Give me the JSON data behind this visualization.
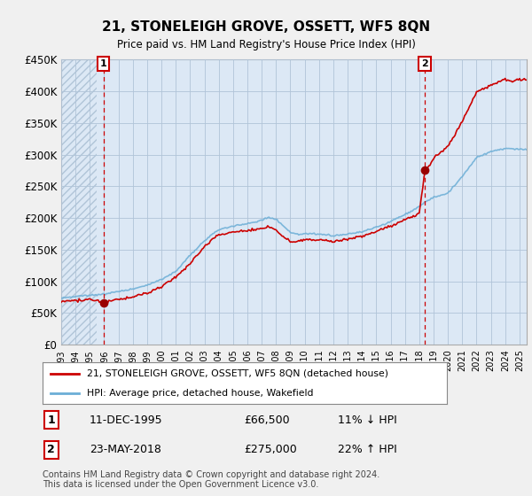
{
  "title": "21, STONELEIGH GROVE, OSSETT, WF5 8QN",
  "subtitle": "Price paid vs. HM Land Registry's House Price Index (HPI)",
  "ylim": [
    0,
    450000
  ],
  "yticks": [
    0,
    50000,
    100000,
    150000,
    200000,
    250000,
    300000,
    350000,
    400000,
    450000
  ],
  "ytick_labels": [
    "£0",
    "£50K",
    "£100K",
    "£150K",
    "£200K",
    "£250K",
    "£300K",
    "£350K",
    "£400K",
    "£450K"
  ],
  "bg_color": "#f0f0f0",
  "plot_bg_color": "#dce8f5",
  "hatch_bg_color": "#c8d8ea",
  "hpi_color": "#6baed6",
  "price_color": "#cc0000",
  "marker_color": "#990000",
  "vline_color": "#cc0000",
  "grid_color": "#b0c4d8",
  "legend_label_price": "21, STONELEIGH GROVE, OSSETT, WF5 8QN (detached house)",
  "legend_label_hpi": "HPI: Average price, detached house, Wakefield",
  "transaction1_label": "1",
  "transaction1_date": "11-DEC-1995",
  "transaction1_price": "£66,500",
  "transaction1_hpi": "11% ↓ HPI",
  "transaction2_label": "2",
  "transaction2_date": "23-MAY-2018",
  "transaction2_price": "£275,000",
  "transaction2_hpi": "22% ↑ HPI",
  "footer": "Contains HM Land Registry data © Crown copyright and database right 2024.\nThis data is licensed under the Open Government Licence v3.0.",
  "sale1_year": 1995.95,
  "sale1_price": 66500,
  "sale2_year": 2018.39,
  "sale2_price": 275000,
  "xmin": 1993.0,
  "xmax": 2025.5,
  "hatch_xmin": 1993.0,
  "hatch_xmax": 1995.5
}
